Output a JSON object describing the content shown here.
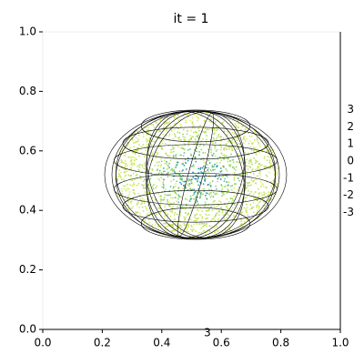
{
  "chart_data": {
    "type": "scatter",
    "title": "it = 1",
    "xlim": [
      0,
      1
    ],
    "ylim": [
      0,
      1
    ],
    "xticks": [
      {
        "value": 0,
        "label": "0.0"
      },
      {
        "value": 0.2,
        "label": "0.2"
      },
      {
        "value": 0.4,
        "label": "0.4"
      },
      {
        "value": 0.6,
        "label": "0.6"
      },
      {
        "value": 0.8,
        "label": "0.8"
      },
      {
        "value": 1,
        "label": "1.0"
      }
    ],
    "yticks": [
      {
        "value": 0,
        "label": "0.0"
      },
      {
        "value": 0.2,
        "label": "0.2"
      },
      {
        "value": 0.4,
        "label": "0.4"
      },
      {
        "value": 0.6,
        "label": "0.6"
      },
      {
        "value": 0.8,
        "label": "0.8"
      },
      {
        "value": 1,
        "label": "1.0"
      }
    ],
    "zticks": [
      3,
      2,
      1,
      0,
      -1,
      -2,
      -3
    ],
    "bottom_label": "3"
  }
}
